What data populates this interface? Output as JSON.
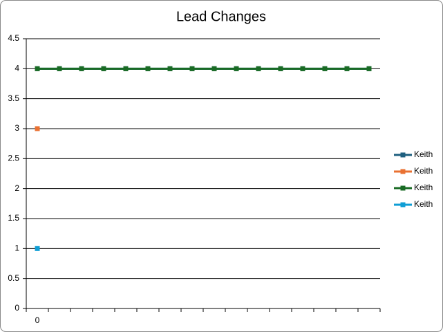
{
  "chart_data": {
    "type": "line",
    "title": "Lead Changes",
    "categories": [
      "0",
      null,
      null,
      null,
      null,
      null,
      null,
      null,
      null,
      null,
      null,
      null,
      null,
      null,
      null,
      null
    ],
    "series": [
      {
        "name": "Keith",
        "color": "#1e5f7f",
        "values": [
          4,
          4,
          4,
          4,
          4,
          4,
          4,
          4,
          4,
          4,
          4,
          4,
          4,
          4,
          4,
          4
        ]
      },
      {
        "name": "Keith",
        "color": "#e97132",
        "values": [
          3,
          null,
          null,
          null,
          null,
          null,
          null,
          null,
          null,
          null,
          null,
          null,
          null,
          null,
          null,
          null
        ]
      },
      {
        "name": "Keith",
        "color": "#196b24",
        "values": [
          4,
          4,
          4,
          4,
          4,
          4,
          4,
          4,
          4,
          4,
          4,
          4,
          4,
          4,
          4,
          4
        ]
      },
      {
        "name": "Keith",
        "color": "#0f9ed5",
        "values": [
          1,
          null,
          null,
          null,
          null,
          null,
          null,
          null,
          null,
          null,
          null,
          null,
          null,
          null,
          null,
          null
        ]
      }
    ],
    "ylim": [
      0,
      4.5
    ],
    "yticks": [
      0,
      0.5,
      1,
      1.5,
      2,
      2.5,
      3,
      3.5,
      4,
      4.5
    ],
    "grid": true,
    "legend": "right"
  }
}
